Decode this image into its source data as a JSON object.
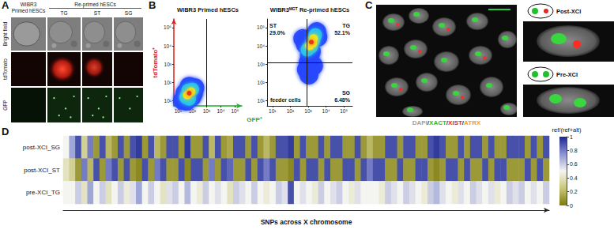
{
  "panels": {
    "A": {
      "label": "A",
      "column_header": "WIBR3 Primed hESCs",
      "group_header": "Re-primed hESCs",
      "columns": [
        "TG",
        "ST",
        "SG"
      ],
      "rows": [
        "Bright field",
        "tdTomato",
        "GFP"
      ]
    },
    "C": {
      "label": "C",
      "stains": [
        {
          "name": "DAPI",
          "color": "#a0a0a0"
        },
        {
          "name": "XACT",
          "color": "#22c02a"
        },
        {
          "name": "XIST",
          "color": "#e4281e"
        },
        {
          "name": "ATRX",
          "color": "#e8a23a"
        }
      ],
      "separator": "/",
      "insets": [
        "Post-XCI",
        "Pre-XCI"
      ]
    }
  },
  "chart_data": [
    {
      "type": "scatter",
      "panel": "B",
      "title": "WIBR3 Primed hESCs",
      "xlabel": "GFP⁺",
      "ylabel": "tdTomato⁺",
      "log": true,
      "grid": false,
      "xlim": [
        5,
        300000
      ],
      "ylim": [
        5,
        300000
      ],
      "xticks": [
        {
          "value": 10,
          "label": "10¹"
        },
        {
          "value": 100,
          "label": "10²"
        },
        {
          "value": 1000,
          "label": "10³"
        },
        {
          "value": 10000,
          "label": "10⁴"
        },
        {
          "value": 100000,
          "label": "10⁵"
        }
      ],
      "yticks": [
        {
          "value": 10,
          "label": "10¹"
        },
        {
          "value": 100,
          "label": "10²"
        },
        {
          "value": 1000,
          "label": "10³"
        },
        {
          "value": 10000,
          "label": "10⁴"
        },
        {
          "value": 100000,
          "label": "10⁵"
        }
      ],
      "gates": {
        "x": 1000
      },
      "density_points": [
        [
          60,
          25,
          4
        ],
        [
          45,
          20,
          3
        ],
        [
          80,
          30,
          3
        ],
        [
          35,
          15,
          2
        ],
        [
          100,
          40,
          2
        ],
        [
          60,
          12,
          2
        ],
        [
          50,
          35,
          2
        ],
        [
          20,
          10,
          1
        ],
        [
          150,
          50,
          1
        ],
        [
          90,
          15,
          1
        ],
        [
          30,
          25,
          1
        ],
        [
          60,
          60,
          1
        ],
        [
          120,
          25,
          1
        ],
        [
          40,
          9,
          1
        ]
      ],
      "quadrants": []
    },
    {
      "type": "scatter",
      "title": "WIBR3ᴹᴳᵀ Re-primed hESCs",
      "log": true,
      "grid": false,
      "xlim": [
        5,
        300000
      ],
      "ylim": [
        5,
        300000
      ],
      "xticks": [
        {
          "value": 10,
          "label": "10¹"
        },
        {
          "value": 100,
          "label": "10²"
        },
        {
          "value": 1000,
          "label": "10³"
        },
        {
          "value": 10000,
          "label": "10⁴"
        },
        {
          "value": 100000,
          "label": "10⁵"
        }
      ],
      "yticks": [
        {
          "value": 10,
          "label": "10¹"
        },
        {
          "value": 100,
          "label": "10²"
        },
        {
          "value": 1000,
          "label": "10³"
        },
        {
          "value": 10000,
          "label": "10⁴"
        },
        {
          "value": 100000,
          "label": "10⁵"
        }
      ],
      "gates": {
        "x": 800,
        "y": 1200
      },
      "density_points": [
        [
          1500,
          16000,
          4
        ],
        [
          1200,
          10000,
          3
        ],
        [
          2000,
          25000,
          3
        ],
        [
          1800,
          14000,
          3
        ],
        [
          900,
          6000,
          2
        ],
        [
          2500,
          40000,
          2
        ],
        [
          1500,
          9000,
          2
        ],
        [
          2000,
          20000,
          2
        ],
        [
          700,
          12000,
          1
        ],
        [
          3500,
          30000,
          1
        ],
        [
          1200,
          3000,
          1
        ],
        [
          1000,
          1200,
          1
        ],
        [
          800,
          500,
          1
        ],
        [
          1100,
          250,
          1
        ],
        [
          2000,
          800,
          1
        ],
        [
          3000,
          60000,
          1
        ],
        [
          500,
          25000,
          1
        ],
        [
          1500,
          5000,
          1
        ]
      ],
      "quadrants": [
        {
          "name": "ST",
          "value": 29.0,
          "label": "29.0%"
        },
        {
          "name": "TG",
          "value": 52.1,
          "label": "52.1%"
        },
        {
          "name": "SG",
          "value": 6.48,
          "label": "6.48%"
        },
        {
          "name": "feeder cells"
        }
      ]
    },
    {
      "type": "heatmap",
      "panel": "D",
      "rows": [
        "post-XCI_SG",
        "post-XCI_ST",
        "pre-XCI_TG"
      ],
      "cells": [
        [
          0.5,
          0.7,
          0.9,
          0.3,
          0.8,
          0.1,
          0.9,
          0.2,
          0.1,
          0.9,
          0.1,
          0.9,
          0.95,
          0.1,
          0.9,
          0.2,
          0.1,
          0.9,
          0.9,
          0.1,
          0.95,
          0.1,
          0.1,
          0.9,
          0.2,
          0.9,
          0.1,
          0.15,
          0.9,
          0.9,
          0.1,
          0.9,
          0.1,
          0.2,
          0.1,
          0.9,
          0.9,
          0.95,
          0.1,
          0.9,
          0.1,
          0.1,
          0.9,
          0.1,
          0.9,
          0.9,
          0.1,
          0.1,
          0.9,
          0.1,
          0.2,
          0.1,
          0.1,
          0.9,
          0.9,
          0.1,
          0.9,
          0.9,
          0.1,
          0.1,
          0.9,
          0.95,
          0.9,
          0.1,
          0.1,
          0.9,
          0.1,
          0.9,
          0.9,
          0.1,
          0.9,
          0.1,
          0.1,
          0.9,
          0.9,
          0.9,
          0.1,
          0.9,
          0.1,
          0.9
        ],
        [
          0.4,
          0.3,
          0.1,
          0.8,
          0.2,
          0.9,
          0.1,
          0.8,
          0.9,
          0.1,
          0.9,
          0.1,
          0.05,
          0.9,
          0.1,
          0.8,
          0.9,
          0.1,
          0.1,
          0.9,
          0.05,
          0.9,
          0.9,
          0.1,
          0.8,
          0.1,
          0.9,
          0.85,
          0.1,
          0.1,
          0.9,
          0.1,
          0.9,
          0.8,
          0.9,
          0.1,
          0.1,
          0.05,
          0.9,
          0.1,
          0.9,
          0.9,
          0.1,
          0.9,
          0.1,
          0.1,
          0.9,
          0.9,
          0.1,
          0.9,
          0.8,
          0.9,
          0.9,
          0.1,
          0.1,
          0.9,
          0.1,
          0.1,
          0.9,
          0.9,
          0.1,
          0.05,
          0.1,
          0.9,
          0.9,
          0.1,
          0.9,
          0.1,
          0.1,
          0.9,
          0.1,
          0.9,
          0.9,
          0.1,
          0.1,
          0.1,
          0.9,
          0.1,
          0.9,
          0.1
        ],
        [
          0.5,
          0.5,
          0.6,
          0.4,
          0.7,
          0.5,
          0.6,
          0.4,
          0.5,
          0.6,
          0.45,
          0.55,
          0.7,
          0.5,
          0.6,
          0.5,
          0.4,
          0.55,
          0.6,
          0.5,
          0.65,
          0.5,
          0.45,
          0.6,
          0.5,
          0.55,
          0.5,
          0.4,
          0.6,
          0.55,
          0.5,
          0.6,
          0.5,
          0.45,
          0.5,
          0.6,
          0.55,
          0.9,
          0.5,
          0.55,
          0.5,
          0.45,
          0.6,
          0.5,
          0.55,
          0.6,
          0.5,
          0.45,
          0.55,
          0.5,
          0.5,
          0.5,
          0.45,
          0.6,
          0.55,
          0.5,
          0.6,
          0.55,
          0.5,
          0.45,
          0.6,
          0.65,
          0.55,
          0.5,
          0.45,
          0.55,
          0.5,
          0.6,
          0.55,
          0.5,
          0.55,
          0.45,
          0.5,
          0.6,
          0.55,
          0.6,
          0.5,
          0.55,
          0.5,
          0.6
        ]
      ],
      "xlabel": "SNPs across X chromosome",
      "tick_labels": "y",
      "colorbar": {
        "title": "ref/(ref+alt)",
        "lim": [
          0,
          1
        ],
        "ticks": [
          0,
          0.2,
          0.4,
          0.6,
          0.8,
          1
        ]
      },
      "colors": [
        "#7d7a0c",
        "#c9c77a",
        "#f4f4f0",
        "#8a92d2",
        "#1b2690"
      ]
    }
  ]
}
